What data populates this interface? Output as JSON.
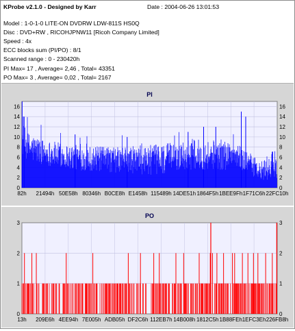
{
  "header": {
    "title": "KProbe v2.1.0 - Designed by Karr",
    "date": "Date : 2004-06-26 13:01:53",
    "lines": [
      "Model : 1-0-1-0 LITE-ON DVDRW LDW-811S   HS0Q",
      "Disc : DVD+RW , RICOHJPNW11 [Ricoh Company Limited]",
      "Speed : 4x",
      "ECC blocks sum (PI/PO) : 8/1",
      "Scanned range : 0 - 230420h",
      "PI Max= 17 , Average= 2,46 , Total= 43351",
      "PO Max= 3 , Average= 0,02 , Total= 2167"
    ]
  },
  "chart_data": [
    {
      "type": "bar",
      "title": "PI",
      "ylim": [
        0,
        17
      ],
      "yticks": [
        "0",
        "2",
        "4",
        "6",
        "8",
        "10",
        "12",
        "14",
        "16"
      ],
      "xticks": [
        "82h",
        "21494h",
        "50E58h",
        "80346h",
        "B0CE8h",
        "E1458h",
        "115489h",
        "14DE51h",
        "1864F5h",
        "1BEE9Fh",
        "1F71C6h",
        "22FC10h"
      ],
      "grid": true,
      "colors": {
        "fill": "#0000ff",
        "background": "#f0f0ff",
        "grid": "#c0c0e0"
      },
      "x_range": [
        0,
        230420
      ],
      "profile": [
        {
          "x": 0,
          "base": 9.5,
          "spread": 3.5
        },
        {
          "x": 5000,
          "base": 8.0,
          "spread": 3.0
        },
        {
          "x": 20000,
          "base": 7.0,
          "spread": 2.5
        },
        {
          "x": 45000,
          "base": 6.0,
          "spread": 2.5
        },
        {
          "x": 80000,
          "base": 5.5,
          "spread": 2.5
        },
        {
          "x": 120000,
          "base": 5.5,
          "spread": 3.0
        },
        {
          "x": 150000,
          "base": 6.5,
          "spread": 3.0
        },
        {
          "x": 190000,
          "base": 6.5,
          "spread": 3.0
        },
        {
          "x": 205000,
          "base": 5.0,
          "spread": 2.0
        },
        {
          "x": 215000,
          "base": 3.0,
          "spread": 2.0
        },
        {
          "x": 230420,
          "base": 5.0,
          "spread": 3.0
        }
      ],
      "peaks": [
        {
          "x": 200,
          "value": 17
        },
        {
          "x": 2000,
          "value": 14
        },
        {
          "x": 48000,
          "value": 10.5
        },
        {
          "x": 95000,
          "value": 10
        },
        {
          "x": 150000,
          "value": 11
        },
        {
          "x": 164000,
          "value": 12
        },
        {
          "x": 175000,
          "value": 12
        },
        {
          "x": 198000,
          "value": 15
        },
        {
          "x": 202000,
          "value": 14
        }
      ]
    },
    {
      "type": "bar",
      "title": "PO",
      "ylim": [
        0,
        3
      ],
      "yticks": [
        "0",
        "1",
        "2",
        "3"
      ],
      "xticks": [
        "13h",
        "209E6h",
        "4EE94h",
        "7E005h",
        "ADB05h",
        "DF2C6h",
        "112EB7h",
        "14B008h",
        "1812C5h",
        "1B88FEh",
        "1EFC3Eh",
        "226FB8h"
      ],
      "grid": true,
      "colors": {
        "fill": "#ff0000",
        "background": "#f0f0ff",
        "grid": "#c0c0e0"
      },
      "x_range": [
        0,
        230420
      ],
      "density": 0.62,
      "twos": [
        2300,
        9000,
        13000,
        40000,
        64000,
        96000,
        107000,
        119000,
        124000,
        139000,
        146000,
        160000,
        170000,
        172000,
        176000,
        182000,
        190000,
        192000,
        199000,
        204000,
        209000,
        213000,
        220000,
        226000
      ],
      "threes": [
        170500,
        230000
      ]
    }
  ]
}
